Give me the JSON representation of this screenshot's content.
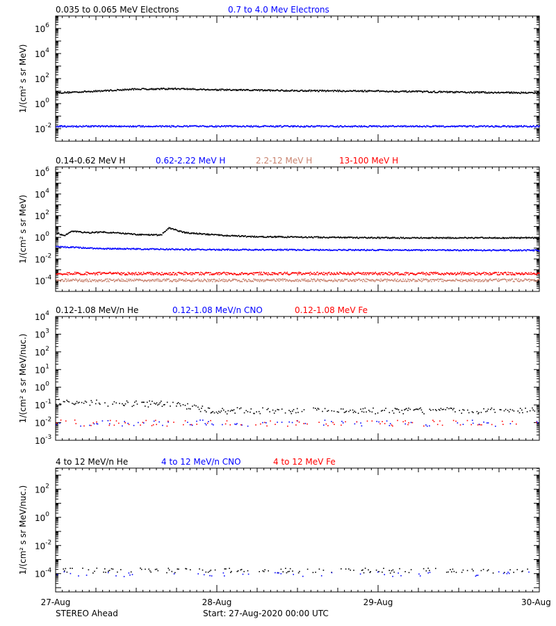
{
  "footer": {
    "observatory": "STEREO Ahead",
    "start": "Start: 27-Aug-2020 00:00 UTC",
    "date_ticks": [
      "27-Aug",
      "28-Aug",
      "29-Aug",
      "30-Aug"
    ]
  },
  "colors": {
    "black": "#000000",
    "blue": "#0000ff",
    "tan": "#c8826e",
    "red": "#ff0000"
  },
  "chart_data": [
    {
      "type": "scatter",
      "ylabel": "1/(cm² s sr MeV)",
      "x_range_days": [
        0,
        3
      ],
      "ylim_log10": [
        -3,
        7
      ],
      "y_ticks": [
        {
          "e": -2,
          "label": "-2"
        },
        {
          "e": 0,
          "label": "0"
        },
        {
          "e": 2,
          "label": "2"
        },
        {
          "e": 4,
          "label": "4"
        },
        {
          "e": 6,
          "label": "6"
        }
      ],
      "legend": [
        {
          "text": "0.035 to 0.065 MeV Electrons",
          "color": "#000000"
        },
        {
          "text": "0.7 to 4.0 Mev Electrons",
          "color": "#0000ff"
        }
      ],
      "series": [
        {
          "name": "0.035 to 0.065 MeV Electrons",
          "color": "#000000",
          "profile": [
            [
              0,
              8
            ],
            [
              0.25,
              11
            ],
            [
              0.5,
              16
            ],
            [
              0.75,
              17
            ],
            [
              1.0,
              14
            ],
            [
              1.5,
              12
            ],
            [
              2.0,
              11
            ],
            [
              2.5,
              9
            ],
            [
              3.0,
              8
            ]
          ]
        },
        {
          "name": "0.7 to 4.0 Mev Electrons",
          "color": "#0000ff",
          "profile": [
            [
              0,
              0.017
            ],
            [
              3.0,
              0.017
            ]
          ]
        }
      ]
    },
    {
      "type": "scatter",
      "ylabel": "1/(cm² s sr MeV)",
      "x_range_days": [
        0,
        3
      ],
      "ylim_log10": [
        -5,
        6.5
      ],
      "y_ticks": [
        {
          "e": -4,
          "label": "-4"
        },
        {
          "e": -2,
          "label": "-2"
        },
        {
          "e": 0,
          "label": "0"
        },
        {
          "e": 2,
          "label": "2"
        },
        {
          "e": 4,
          "label": "4"
        },
        {
          "e": 6,
          "label": "6"
        }
      ],
      "legend": [
        {
          "text": "0.14-0.62 MeV H",
          "color": "#000000"
        },
        {
          "text": "0.62-2.22 MeV H",
          "color": "#0000ff"
        },
        {
          "text": "2.2-12 MeV H",
          "color": "#c8826e"
        },
        {
          "text": "13-100 MeV H",
          "color": "#ff0000"
        }
      ],
      "series": [
        {
          "name": "0.14-0.62 MeV H",
          "color": "#000000",
          "profile": [
            [
              0,
              3
            ],
            [
              0.05,
              1.5
            ],
            [
              0.1,
              4
            ],
            [
              0.2,
              3
            ],
            [
              0.3,
              3.5
            ],
            [
              0.5,
              2
            ],
            [
              0.65,
              1.8
            ],
            [
              0.7,
              8
            ],
            [
              0.8,
              3
            ],
            [
              1.0,
              1.8
            ],
            [
              1.2,
              1.3
            ],
            [
              2.0,
              1.0
            ],
            [
              3.0,
              1.0
            ]
          ]
        },
        {
          "name": "0.62-2.22 MeV H",
          "color": "#0000ff",
          "profile": [
            [
              0,
              0.15
            ],
            [
              0.3,
              0.1
            ],
            [
              1.0,
              0.08
            ],
            [
              3.0,
              0.07
            ]
          ]
        },
        {
          "name": "2.2-12 MeV H",
          "color": "#c8826e",
          "profile": [
            [
              0,
              0.00012
            ],
            [
              3.0,
              0.00012
            ]
          ]
        },
        {
          "name": "13-100 MeV H",
          "color": "#ff0000",
          "profile": [
            [
              0,
              0.0005
            ],
            [
              3.0,
              0.0005
            ]
          ]
        }
      ]
    },
    {
      "type": "scatter",
      "ylabel": "1/(cm² s sr MeV/nuc.)",
      "x_range_days": [
        0,
        3
      ],
      "ylim_log10": [
        -3,
        4
      ],
      "y_ticks": [
        {
          "e": -3,
          "label": "-3"
        },
        {
          "e": -2,
          "label": "-2"
        },
        {
          "e": -1,
          "label": "-1"
        },
        {
          "e": 0,
          "label": "0"
        },
        {
          "e": 1,
          "label": "1"
        },
        {
          "e": 2,
          "label": "2"
        },
        {
          "e": 3,
          "label": "3"
        },
        {
          "e": 4,
          "label": "4"
        }
      ],
      "legend": [
        {
          "text": "0.12-1.08 MeV/n He",
          "color": "#000000"
        },
        {
          "text": "0.12-1.08 MeV/n CNO",
          "color": "#0000ff"
        },
        {
          "text": "0.12-1.08 MeV Fe",
          "color": "#ff0000"
        }
      ],
      "series": [
        {
          "name": "0.12-1.08 MeV/n He",
          "color": "#000000",
          "profile": [
            [
              0,
              0.15
            ],
            [
              0.5,
              0.12
            ],
            [
              0.7,
              0.12
            ],
            [
              1.0,
              0.05
            ],
            [
              3.0,
              0.05
            ]
          ]
        },
        {
          "name": "0.12-1.08 MeV/n CNO",
          "color": "#0000ff",
          "profile": [
            [
              0,
              0.01
            ],
            [
              3.0,
              0.01
            ]
          ]
        },
        {
          "name": "0.12-1.08 MeV Fe",
          "color": "#ff0000",
          "profile": [
            [
              0,
              0.01
            ],
            [
              3.0,
              0.01
            ]
          ]
        }
      ]
    },
    {
      "type": "scatter",
      "ylabel": "1/(cm² s sr MeV/nuc.)",
      "x_range_days": [
        0,
        3
      ],
      "ylim_log10": [
        -5.3,
        3.5
      ],
      "y_ticks": [
        {
          "e": -4,
          "label": "-4"
        },
        {
          "e": -2,
          "label": "-2"
        },
        {
          "e": 0,
          "label": "0"
        },
        {
          "e": 2,
          "label": "2"
        }
      ],
      "legend": [
        {
          "text": "4 to 12 MeV/n He",
          "color": "#000000"
        },
        {
          "text": "4 to 12 MeV/n CNO",
          "color": "#0000ff"
        },
        {
          "text": "4 to 12 MeV Fe",
          "color": "#ff0000"
        }
      ],
      "series": [
        {
          "name": "4 to 12 MeV/n He",
          "color": "#000000",
          "profile": [
            [
              0,
              0.00018
            ],
            [
              3.0,
              0.00018
            ]
          ]
        },
        {
          "name": "4 to 12 MeV/n CNO",
          "color": "#0000ff",
          "profile": [
            [
              0,
              0.0001
            ],
            [
              3.0,
              0.0001
            ]
          ]
        }
      ]
    }
  ]
}
